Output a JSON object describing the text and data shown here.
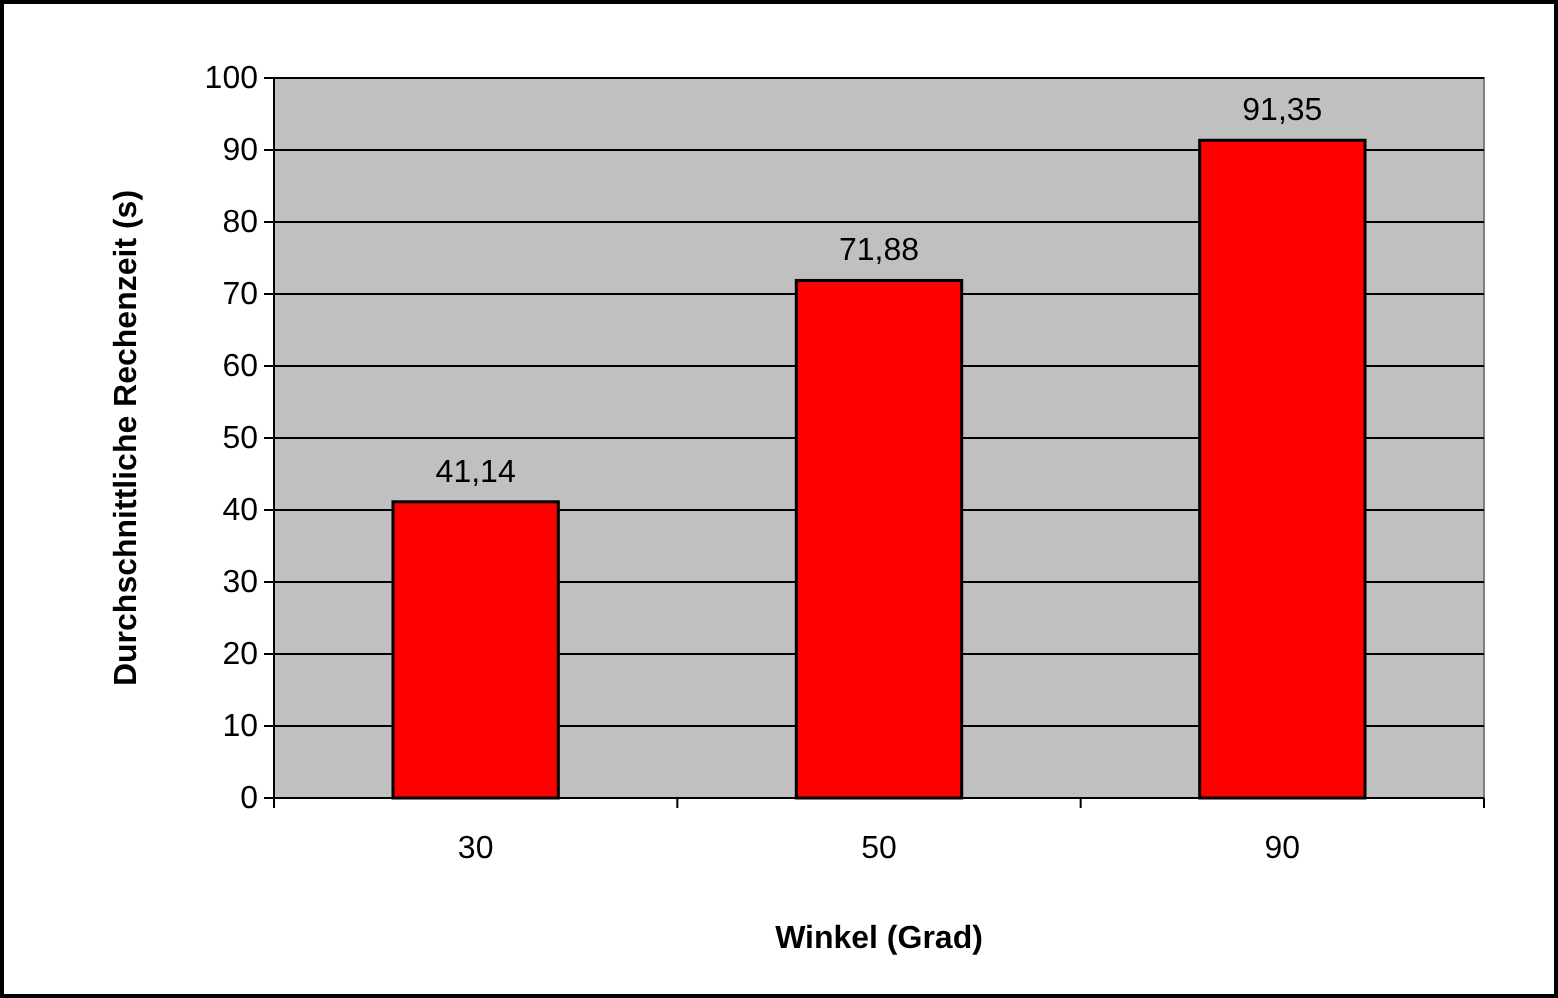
{
  "chart_data": {
    "type": "bar",
    "xlabel": "Winkel (Grad)",
    "ylabel": "Durchschnittliche Rechenzeit (s)",
    "categories": [
      "30",
      "50",
      "90"
    ],
    "values": [
      41.14,
      71.88,
      91.35
    ],
    "value_labels": [
      "41,14",
      "71,88",
      "91,35"
    ],
    "color": "#ff0000",
    "ylim": [
      0,
      100
    ],
    "yticks": [
      0,
      10,
      20,
      30,
      40,
      50,
      60,
      70,
      80,
      90,
      100
    ],
    "grid": "y"
  }
}
